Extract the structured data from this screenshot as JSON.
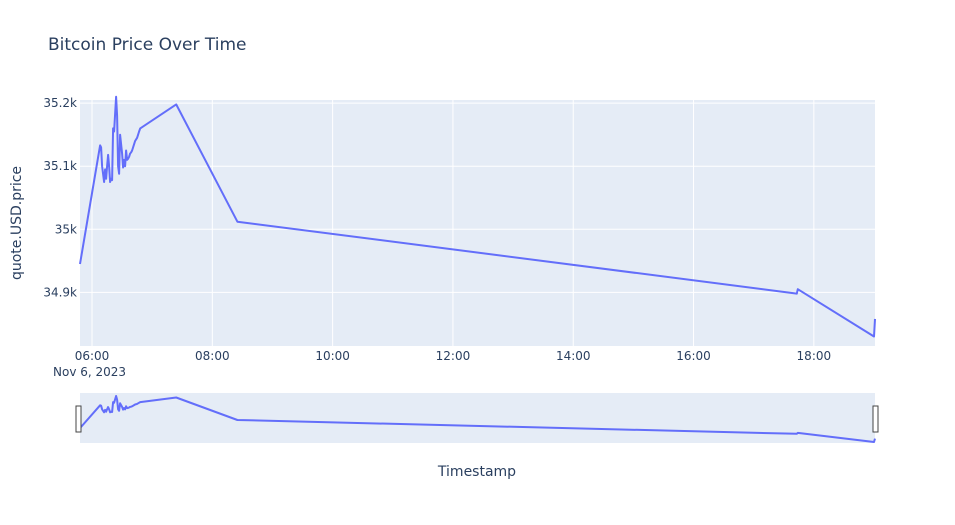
{
  "chart_data": {
    "type": "line",
    "title": "Bitcoin Price Over Time",
    "xlabel": "Timestamp",
    "ylabel": "quote.USD.price",
    "x_tick_labels": [
      "06:00",
      "08:00",
      "10:00",
      "12:00",
      "14:00",
      "16:00",
      "18:00"
    ],
    "x_tick_date_label": "Nov 6, 2023",
    "y_tick_labels": [
      "34.9k",
      "35k",
      "35.1k",
      "35.2k"
    ],
    "y_tick_values": [
      34900,
      35000,
      35100,
      35200
    ],
    "xlim": [
      "2023-11-06 05:48",
      "2023-11-06 19:01"
    ],
    "ylim": [
      34815,
      35205
    ],
    "grid": true,
    "rangeslider": true,
    "series_color": "#636efa",
    "series": [
      {
        "x": [
          "2023-11-06 05:48",
          "2023-11-06 06:08",
          "2023-11-06 06:09",
          "2023-11-06 06:10",
          "2023-11-06 06:12",
          "2023-11-06 06:13",
          "2023-11-06 06:14",
          "2023-11-06 06:15",
          "2023-11-06 06:16",
          "2023-11-06 06:17",
          "2023-11-06 06:18",
          "2023-11-06 06:19",
          "2023-11-06 06:20",
          "2023-11-06 06:21",
          "2023-11-06 06:22",
          "2023-11-06 06:24",
          "2023-11-06 06:25",
          "2023-11-06 06:26",
          "2023-11-06 06:27",
          "2023-11-06 06:28",
          "2023-11-06 06:30",
          "2023-11-06 06:31",
          "2023-11-06 06:32",
          "2023-11-06 06:33",
          "2023-11-06 06:34",
          "2023-11-06 06:35",
          "2023-11-06 06:36",
          "2023-11-06 06:37",
          "2023-11-06 06:38",
          "2023-11-06 06:39",
          "2023-11-06 06:40",
          "2023-11-06 06:42",
          "2023-11-06 06:43",
          "2023-11-06 06:45",
          "2023-11-06 06:46",
          "2023-11-06 06:47",
          "2023-11-06 06:48",
          "2023-11-06 07:24",
          "2023-11-06 08:25",
          "2023-11-06 17:43",
          "2023-11-06 17:44",
          "2023-11-06 19:00",
          "2023-11-06 19:01"
        ],
        "y": [
          34945,
          35133,
          35130,
          35100,
          35075,
          35095,
          35080,
          35100,
          35118,
          35100,
          35075,
          35080,
          35078,
          35160,
          35155,
          35210,
          35180,
          35100,
          35088,
          35150,
          35120,
          35098,
          35110,
          35100,
          35125,
          35110,
          35112,
          35115,
          35120,
          35122,
          35125,
          35135,
          35140,
          35145,
          35150,
          35155,
          35160,
          35198,
          35012,
          34898,
          34905,
          34830,
          34858
        ]
      }
    ]
  }
}
